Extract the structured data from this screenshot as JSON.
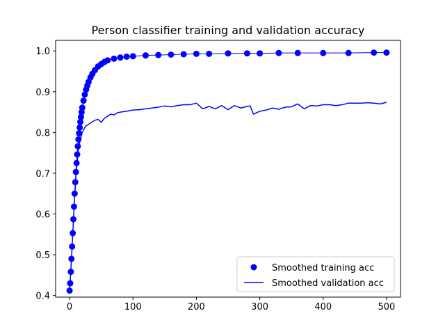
{
  "chart_data": {
    "type": "line",
    "title": "Person classifier training and validation accuracy",
    "xlabel": "",
    "ylabel": "",
    "xlim": [
      -22,
      522
    ],
    "ylim": [
      0.396,
      1.026
    ],
    "xticks": [
      0,
      100,
      200,
      300,
      400,
      500
    ],
    "yticks": [
      0.4,
      0.5,
      0.6,
      0.7,
      0.8,
      0.9,
      1.0
    ],
    "grid": false,
    "legend_position": "lower-right",
    "color": "#0000ff",
    "series": [
      {
        "name": "Smoothed training acc",
        "style": "markers",
        "x": [
          0,
          1,
          2,
          3,
          4,
          5,
          6,
          7,
          8,
          9,
          10,
          11,
          12,
          13,
          14,
          15,
          16,
          17,
          18,
          19,
          20,
          22,
          24,
          26,
          28,
          30,
          33,
          36,
          40,
          45,
          50,
          55,
          60,
          70,
          80,
          90,
          100,
          120,
          140,
          160,
          180,
          200,
          220,
          250,
          280,
          300,
          330,
          360,
          400,
          440,
          480,
          500
        ],
        "y": [
          0.412,
          0.43,
          0.458,
          0.49,
          0.52,
          0.553,
          0.587,
          0.618,
          0.65,
          0.678,
          0.703,
          0.725,
          0.746,
          0.766,
          0.783,
          0.798,
          0.812,
          0.826,
          0.838,
          0.85,
          0.861,
          0.878,
          0.893,
          0.905,
          0.915,
          0.924,
          0.935,
          0.944,
          0.953,
          0.962,
          0.968,
          0.973,
          0.977,
          0.981,
          0.984,
          0.986,
          0.987,
          0.989,
          0.99,
          0.991,
          0.992,
          0.993,
          0.993,
          0.994,
          0.994,
          0.994,
          0.995,
          0.995,
          0.995,
          0.995,
          0.996,
          0.996
        ]
      },
      {
        "name": "Smoothed validation acc",
        "style": "line",
        "x": [
          0,
          2,
          4,
          6,
          8,
          10,
          12,
          15,
          20,
          25,
          30,
          35,
          40,
          45,
          50,
          55,
          60,
          65,
          70,
          75,
          80,
          90,
          100,
          110,
          120,
          130,
          140,
          150,
          160,
          170,
          180,
          190,
          200,
          210,
          220,
          230,
          240,
          250,
          260,
          270,
          280,
          285,
          290,
          300,
          310,
          320,
          330,
          340,
          350,
          360,
          370,
          380,
          390,
          400,
          410,
          420,
          430,
          440,
          450,
          460,
          470,
          480,
          490,
          500
        ],
        "y": [
          0.412,
          0.46,
          0.52,
          0.58,
          0.64,
          0.69,
          0.73,
          0.77,
          0.8,
          0.815,
          0.82,
          0.825,
          0.83,
          0.832,
          0.825,
          0.835,
          0.84,
          0.845,
          0.843,
          0.848,
          0.85,
          0.852,
          0.855,
          0.856,
          0.858,
          0.86,
          0.862,
          0.865,
          0.863,
          0.866,
          0.868,
          0.868,
          0.872,
          0.858,
          0.864,
          0.858,
          0.866,
          0.856,
          0.866,
          0.86,
          0.864,
          0.865,
          0.845,
          0.852,
          0.855,
          0.86,
          0.857,
          0.862,
          0.863,
          0.87,
          0.858,
          0.866,
          0.865,
          0.868,
          0.868,
          0.866,
          0.868,
          0.872,
          0.872,
          0.872,
          0.873,
          0.872,
          0.87,
          0.874
        ]
      }
    ]
  }
}
